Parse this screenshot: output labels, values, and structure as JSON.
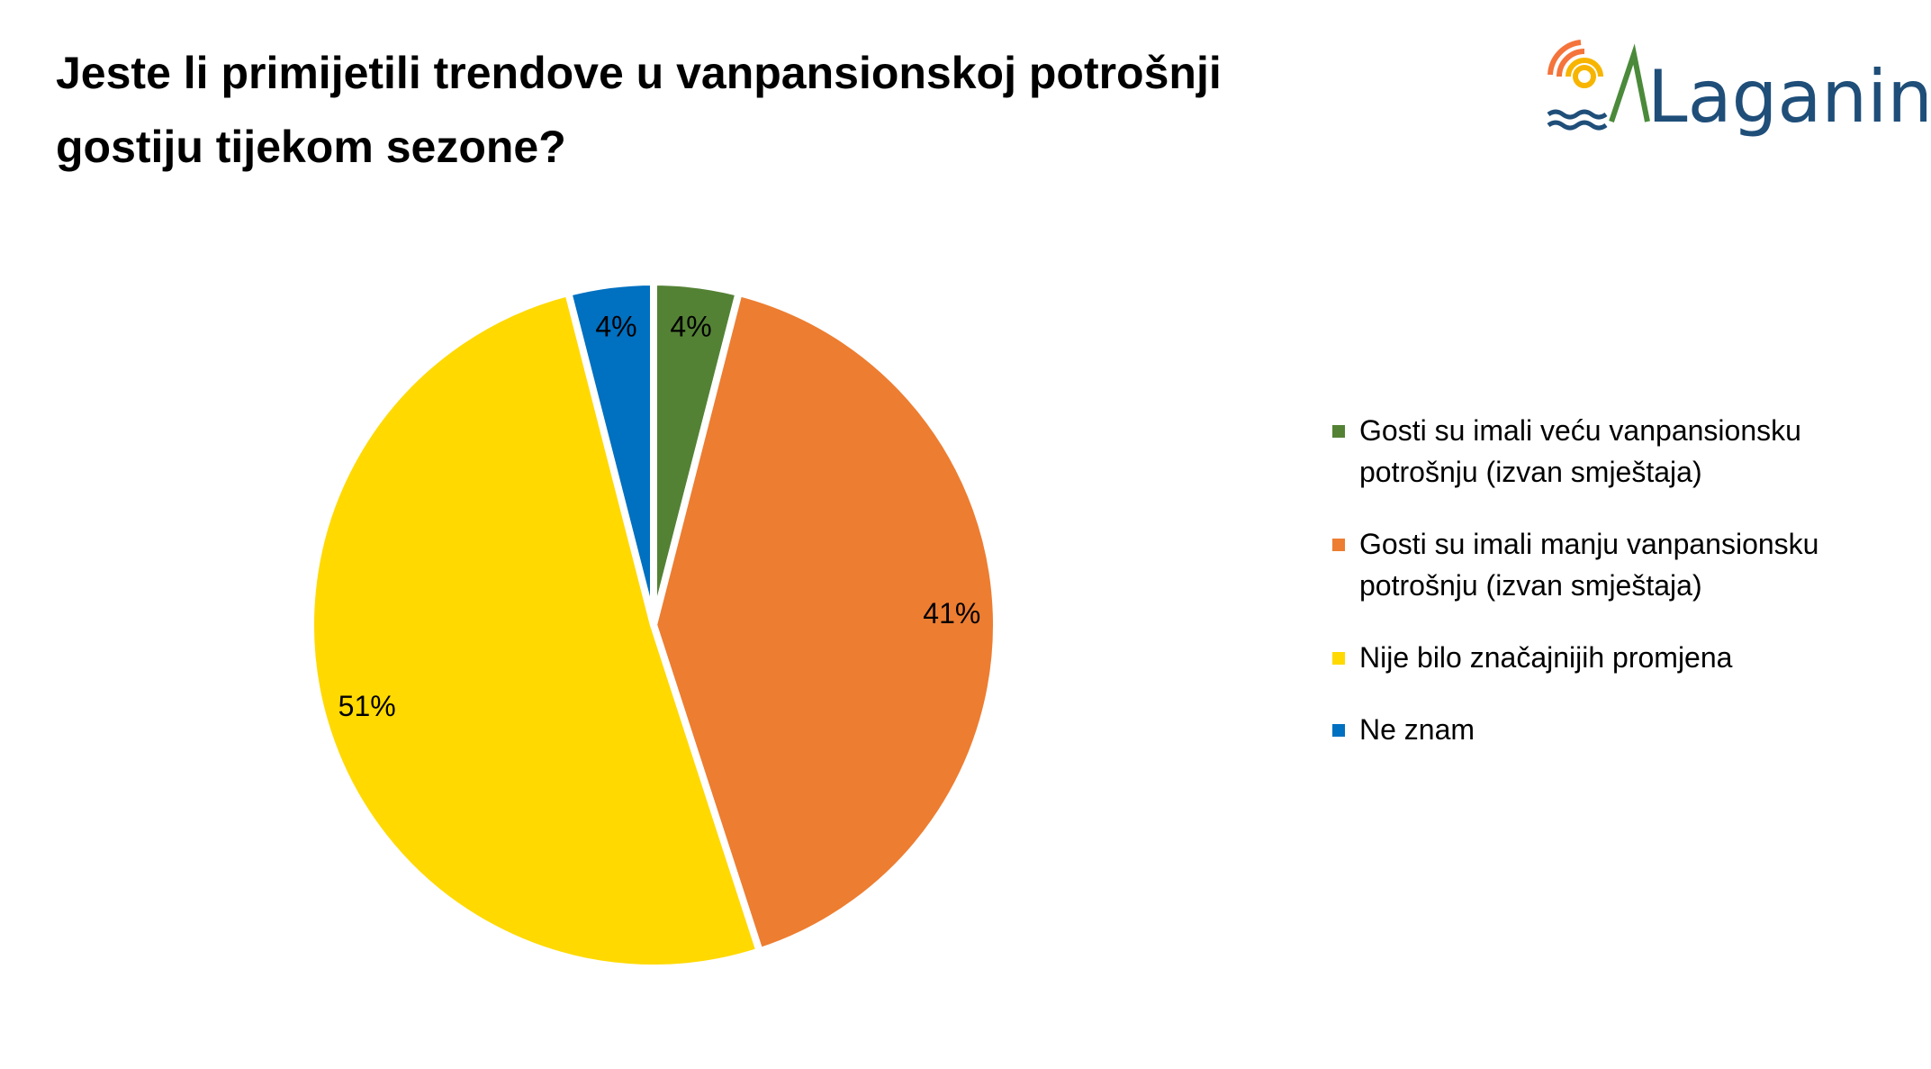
{
  "chart_data": {
    "type": "pie",
    "title": "Jeste li primijetili trendove u vanpansionskoj potrošnji gostiju tijekom sezone?",
    "logo": "Laganini",
    "categories": [
      "Gosti su imali veću vanpansionsku potrošnju (izvan smještaja)",
      "Gosti su imali manju vanpansionsku potrošnju (izvan smještaja)",
      "Nije bilo značajnijih promjena",
      "Ne znam"
    ],
    "values": [
      4,
      41,
      51,
      4
    ],
    "value_labels": [
      "4%",
      "41%",
      "51%",
      "4%"
    ],
    "colors": [
      "#548235",
      "#ed7d31",
      "#ffd900",
      "#0070c0"
    ],
    "legend": "right"
  }
}
